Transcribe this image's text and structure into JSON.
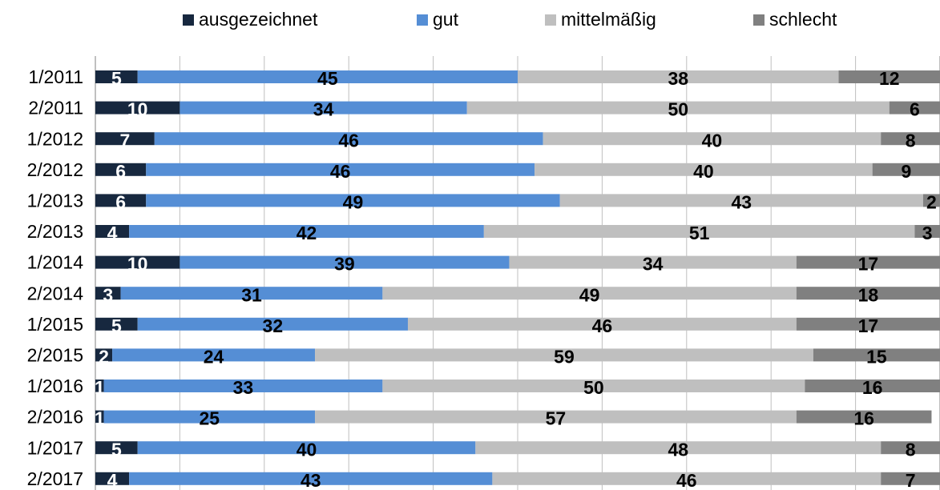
{
  "chart_data": {
    "type": "stacked_bar_horizontal",
    "categories": [
      "1/2011",
      "2/2011",
      "1/2012",
      "2/2012",
      "1/2013",
      "2/2013",
      "1/2014",
      "2/2014",
      "1/2015",
      "2/2015",
      "1/2016",
      "2/2016",
      "1/2017",
      "2/2017"
    ],
    "series": [
      {
        "name": "ausgezeichnet",
        "color": "#17283f",
        "values": [
          5,
          10,
          7,
          6,
          6,
          4,
          10,
          3,
          5,
          2,
          1,
          1,
          5,
          4
        ]
      },
      {
        "name": "gut",
        "color": "#558ed5",
        "values": [
          45,
          34,
          46,
          46,
          49,
          42,
          39,
          31,
          32,
          24,
          33,
          25,
          40,
          43
        ]
      },
      {
        "name": "mittelmäßig",
        "color": "#bfbfbf",
        "values": [
          38,
          50,
          40,
          40,
          43,
          51,
          34,
          49,
          46,
          59,
          50,
          57,
          48,
          46
        ]
      },
      {
        "name": "schlecht",
        "color": "#808080",
        "values": [
          12,
          6,
          8,
          9,
          2,
          3,
          17,
          18,
          17,
          15,
          16,
          16,
          8,
          7
        ]
      }
    ],
    "xlim": [
      0,
      100
    ],
    "xticks": [
      0,
      10,
      20,
      30,
      40,
      50,
      60,
      70,
      80,
      90,
      100
    ],
    "grid": true,
    "legend": "top"
  }
}
